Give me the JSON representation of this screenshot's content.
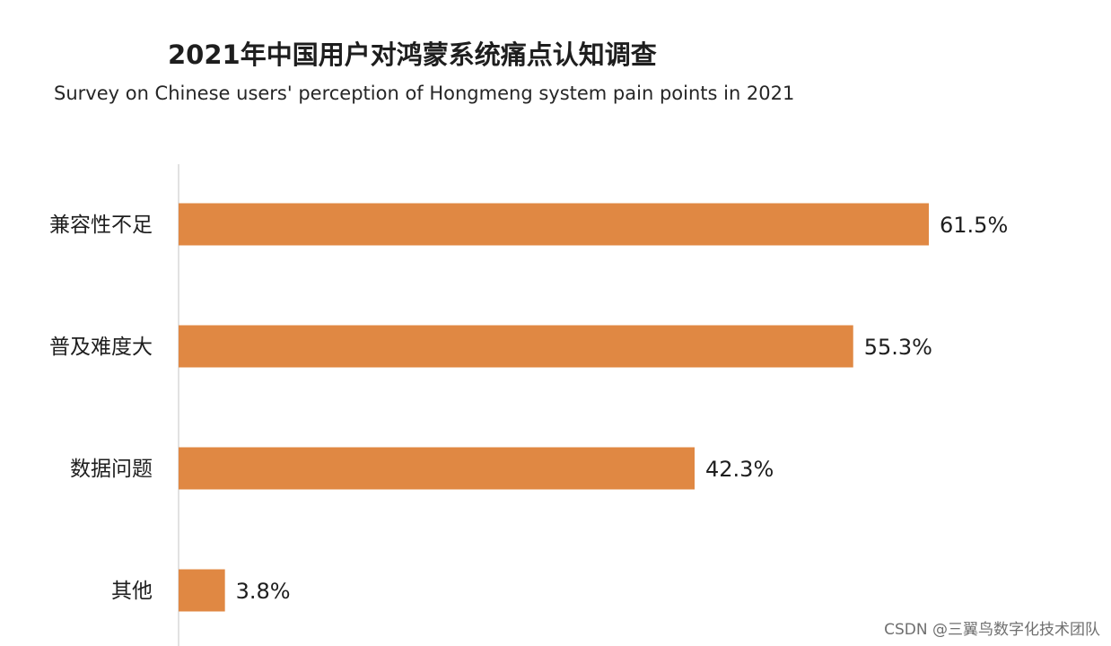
{
  "chart_data": {
    "type": "bar",
    "orientation": "horizontal",
    "title": "2021年中国用户对鸿蒙系统痛点认知调查",
    "subtitle": "Survey on Chinese users' perception of Hongmeng system pain points in 2021",
    "categories": [
      "兼容性不足",
      "普及难度大",
      "数据问题",
      "其他"
    ],
    "values": [
      61.5,
      55.3,
      42.3,
      3.8
    ],
    "value_labels": [
      "61.5%",
      "55.3%",
      "42.3%",
      "3.8%"
    ],
    "unit": "%",
    "xlim": [
      0,
      61.5
    ],
    "bar_color": "#E08843",
    "grid": false
  },
  "watermark": "CSDN @三翼鸟数字化技术团队"
}
